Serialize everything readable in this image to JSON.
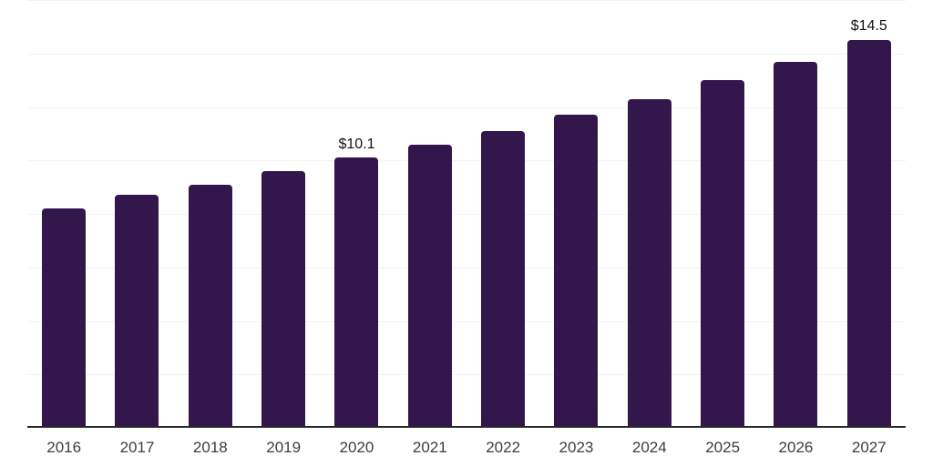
{
  "chart_data": {
    "type": "bar",
    "categories": [
      "2016",
      "2017",
      "2018",
      "2019",
      "2020",
      "2021",
      "2022",
      "2023",
      "2024",
      "2025",
      "2026",
      "2027"
    ],
    "values": [
      8.2,
      8.7,
      9.1,
      9.6,
      10.1,
      10.6,
      11.1,
      11.7,
      12.3,
      13.0,
      13.7,
      14.5
    ],
    "bar_labels": [
      "",
      "",
      "",
      "",
      "$10.1",
      "",
      "",
      "",
      "",
      "",
      "",
      "$14.5"
    ],
    "xlabel": "",
    "ylabel": "",
    "ylim": [
      0,
      16
    ],
    "grid_interval": 2,
    "grid": true,
    "legend": false,
    "bar_color": "#32164c",
    "gridline_color": "#f3f3f3",
    "axis_color": "#262626",
    "tick_label_color": "#3d3d3d",
    "value_label_color": "#111111",
    "background_color": "#ffffff"
  }
}
